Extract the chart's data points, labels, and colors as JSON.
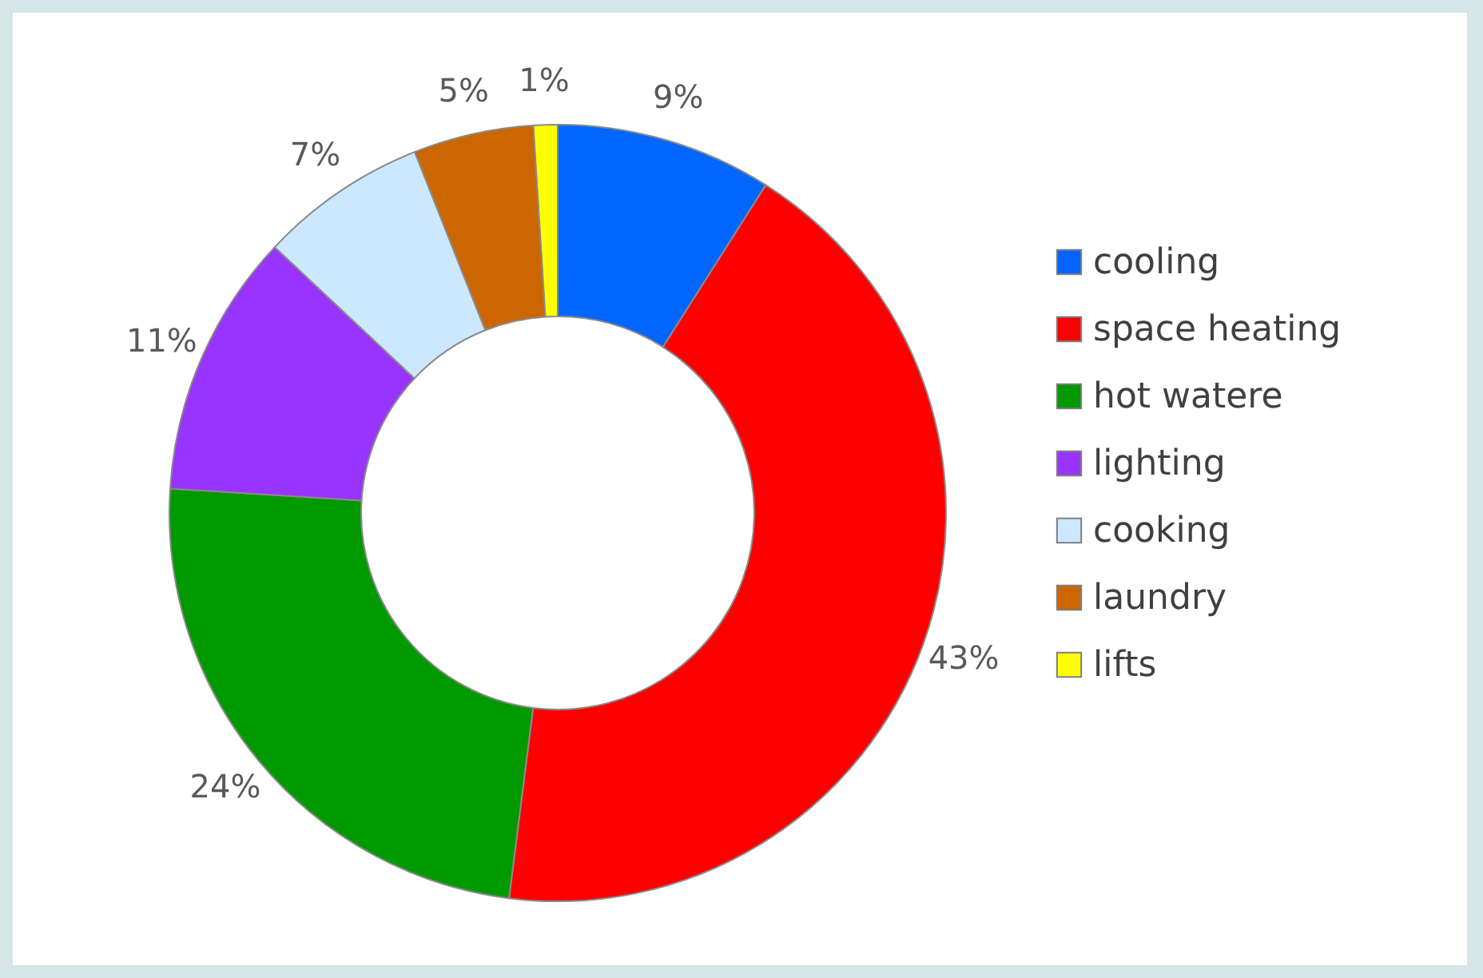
{
  "chart_data": {
    "type": "donut",
    "categories": [
      "cooling",
      "space heating",
      "hot watere",
      "lighting",
      "cooking",
      "laundry",
      "lifts"
    ],
    "values": [
      9,
      43,
      24,
      11,
      7,
      5,
      1
    ],
    "colors": [
      "#0066ff",
      "#ff0000",
      "#009900",
      "#9933ff",
      "#cce8ff",
      "#cc6600",
      "#ffff00"
    ],
    "value_labels": [
      "9%",
      "43%",
      "24%",
      "11%",
      "7%",
      "5%",
      "1%"
    ],
    "legend": "right"
  }
}
